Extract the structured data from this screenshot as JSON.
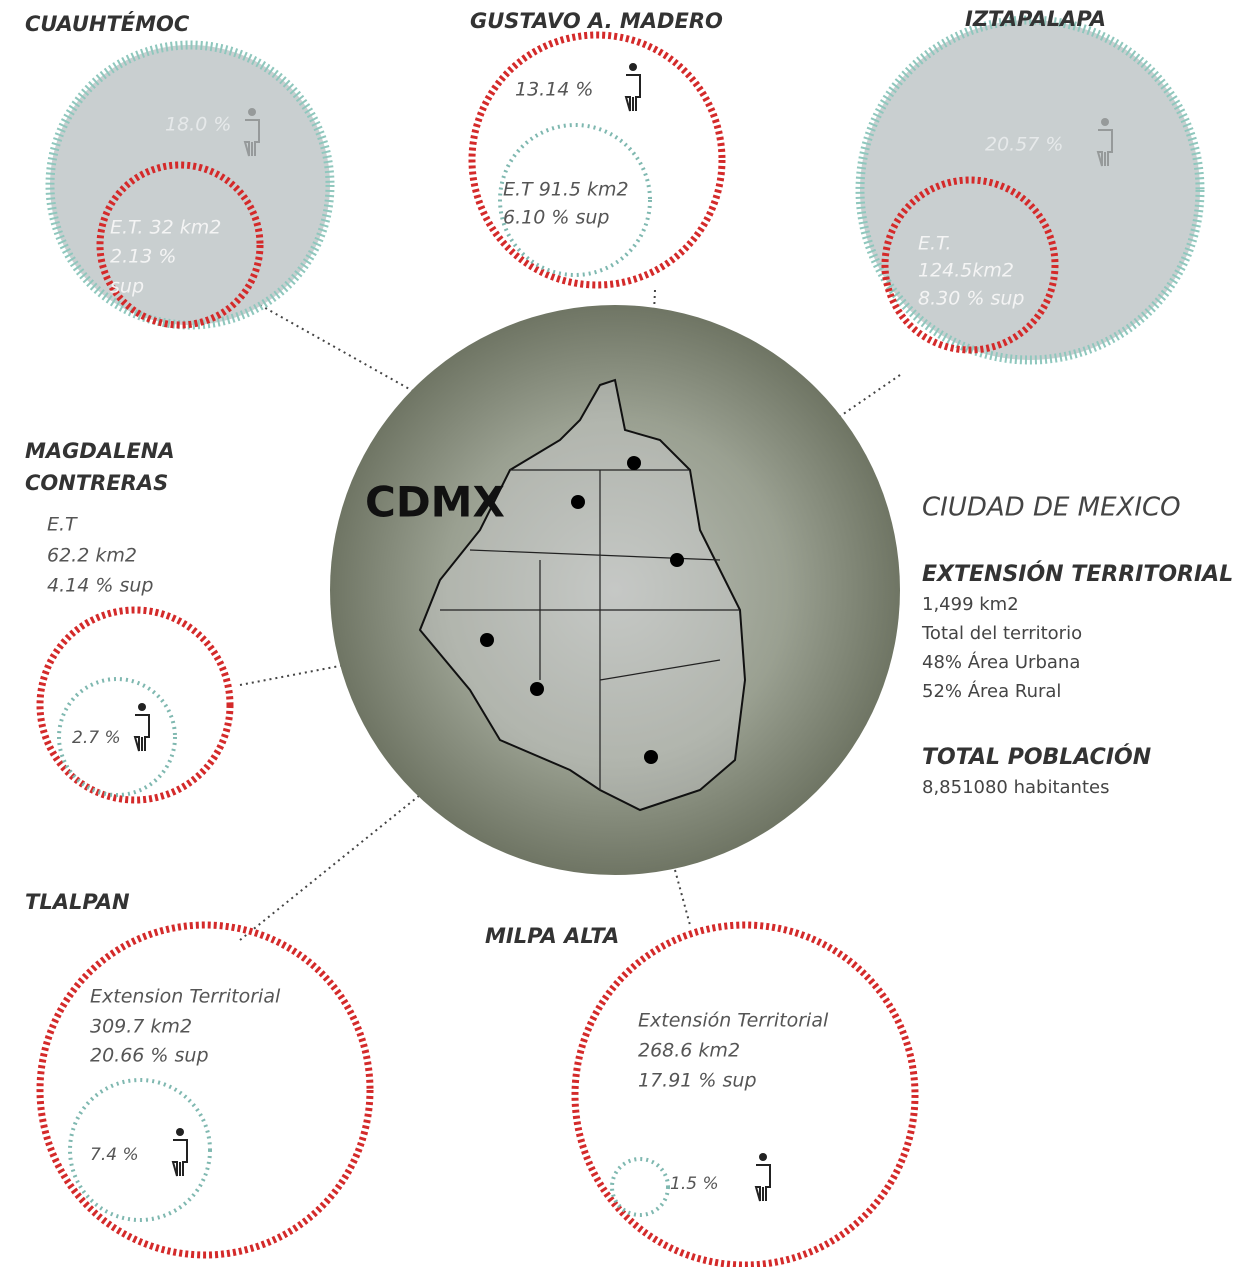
{
  "center": {
    "label": "CDMX"
  },
  "districts": [
    {
      "name": "CUAUHTÉMOC",
      "population": "18.0 %",
      "lines": [
        "E.T. 32 km2",
        "2.13 %",
        "sup"
      ]
    },
    {
      "name": "GUSTAVO   A.  MADERO",
      "population": "13.14  %",
      "lines": [
        "E.T 91.5 km2",
        "6.10  %  sup"
      ]
    },
    {
      "name": "IZTAPALAPA",
      "population": "20.57 %",
      "lines": [
        "E.T.",
        "124.5km2",
        "8.30 % sup"
      ]
    },
    {
      "name": [
        "MAGDALENA",
        "CONTRERAS"
      ],
      "population": "2.7 %",
      "lines": [
        "E.T",
        "62.2 km2",
        "4.14  % sup"
      ]
    },
    {
      "name": "TLALPAN",
      "population": "7.4  %",
      "lines": [
        "Extension Territorial",
        "309.7 km2",
        "20.66 % sup"
      ]
    },
    {
      "name": "MILPA  ALTA",
      "population": "1.5 %",
      "lines": [
        "Extensión Territorial",
        "268.6 km2",
        "17.91  % sup"
      ]
    }
  ],
  "summary": {
    "title": "CIUDAD DE MEXICO",
    "extension_heading": "EXTENSIÓN TERRITORIAL",
    "extension_lines": [
      "1,499 km2",
      "Total del territorio",
      "48% Área Urbana",
      "52% Área Rural"
    ],
    "population_heading": "TOTAL POBLACIÓN",
    "population_line": "8,851080 habitantes"
  }
}
